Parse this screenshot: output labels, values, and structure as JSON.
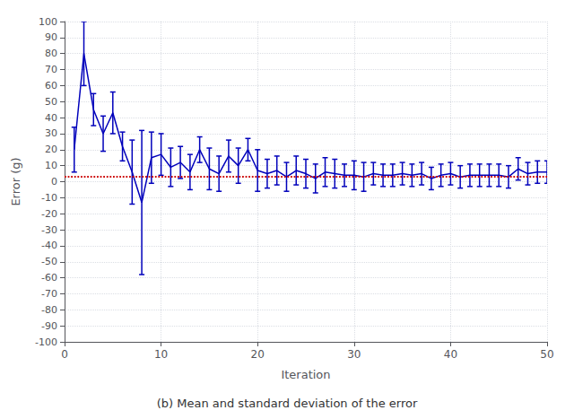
{
  "chart_data": {
    "type": "line",
    "xlabel": "Iteration",
    "ylabel": "Error (g)",
    "caption": "(b) Mean and standard deviation of the error",
    "x": [
      1,
      2,
      3,
      4,
      5,
      6,
      7,
      8,
      9,
      10,
      11,
      12,
      13,
      14,
      15,
      16,
      17,
      18,
      19,
      20,
      21,
      22,
      23,
      24,
      25,
      26,
      27,
      28,
      29,
      30,
      31,
      32,
      33,
      34,
      35,
      36,
      37,
      38,
      39,
      40,
      41,
      42,
      43,
      44,
      45,
      46,
      47,
      48,
      49,
      50
    ],
    "values": [
      20,
      80,
      45,
      30,
      43,
      22,
      6,
      -13,
      15,
      17,
      9,
      12,
      6,
      20,
      8,
      5,
      16,
      10,
      20,
      7,
      5,
      7,
      3,
      7,
      5,
      2,
      6,
      5,
      4,
      4,
      3,
      5,
      4,
      4,
      5,
      4,
      5,
      2,
      4,
      5,
      3,
      4,
      4,
      4,
      4,
      3,
      8,
      5,
      6,
      6
    ],
    "errors": [
      14,
      20,
      10,
      11,
      13,
      9,
      20,
      45,
      16,
      13,
      12,
      10,
      11,
      8,
      13,
      11,
      10,
      11,
      7,
      13,
      9,
      9,
      9,
      9,
      9,
      9,
      9,
      9,
      7,
      9,
      9,
      7,
      7,
      7,
      7,
      7,
      7,
      7,
      7,
      7,
      7,
      7,
      7,
      7,
      7,
      7,
      7,
      7,
      7,
      7
    ],
    "color": "#0000bb",
    "hline": {
      "y": 3,
      "color": "#cc0000",
      "line_style": "dotted"
    },
    "xlim": [
      0,
      50
    ],
    "ylim": [
      -100,
      100
    ],
    "xticks": [
      0,
      10,
      20,
      30,
      40,
      50
    ],
    "yticks": [
      -100,
      -90,
      -80,
      -70,
      -60,
      -50,
      -40,
      -30,
      -20,
      -10,
      0,
      10,
      20,
      30,
      40,
      50,
      60,
      70,
      80,
      90,
      100
    ],
    "grid": true
  }
}
